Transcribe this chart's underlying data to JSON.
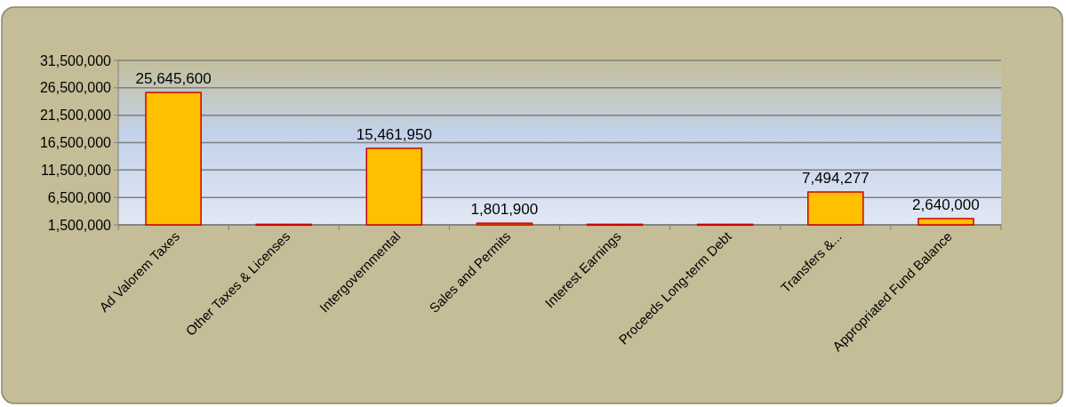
{
  "chart_data": {
    "type": "bar",
    "categories": [
      "Ad Valorem Taxes",
      "Other Taxes & Licenses",
      "Intergovernmental",
      "Sales and Permits",
      "Interest Earnings",
      "Proceeds Long-term Debt",
      "Transfers &...",
      "Appropriated Fund Balance"
    ],
    "values": [
      25645600,
      1600000,
      15461950,
      1801900,
      1600000,
      1600000,
      7494277,
      2640000
    ],
    "value_labels": [
      "25,645,600",
      null,
      "15,461,950",
      "1,801,900",
      null,
      null,
      "7,494,277",
      "2,640,000"
    ],
    "color": "#ffc000",
    "ylim": [
      1500000,
      31500000
    ],
    "yticks": [
      {
        "value": 1500000,
        "label": "1,500,000"
      },
      {
        "value": 6500000,
        "label": "6,500,000"
      },
      {
        "value": 11500000,
        "label": "11,500,000"
      },
      {
        "value": 16500000,
        "label": "16,500,000"
      },
      {
        "value": 21500000,
        "label": "21,500,000"
      },
      {
        "value": 26500000,
        "label": "26,500,000"
      },
      {
        "value": 31500000,
        "label": "31,500,000"
      }
    ],
    "grid": "y"
  }
}
